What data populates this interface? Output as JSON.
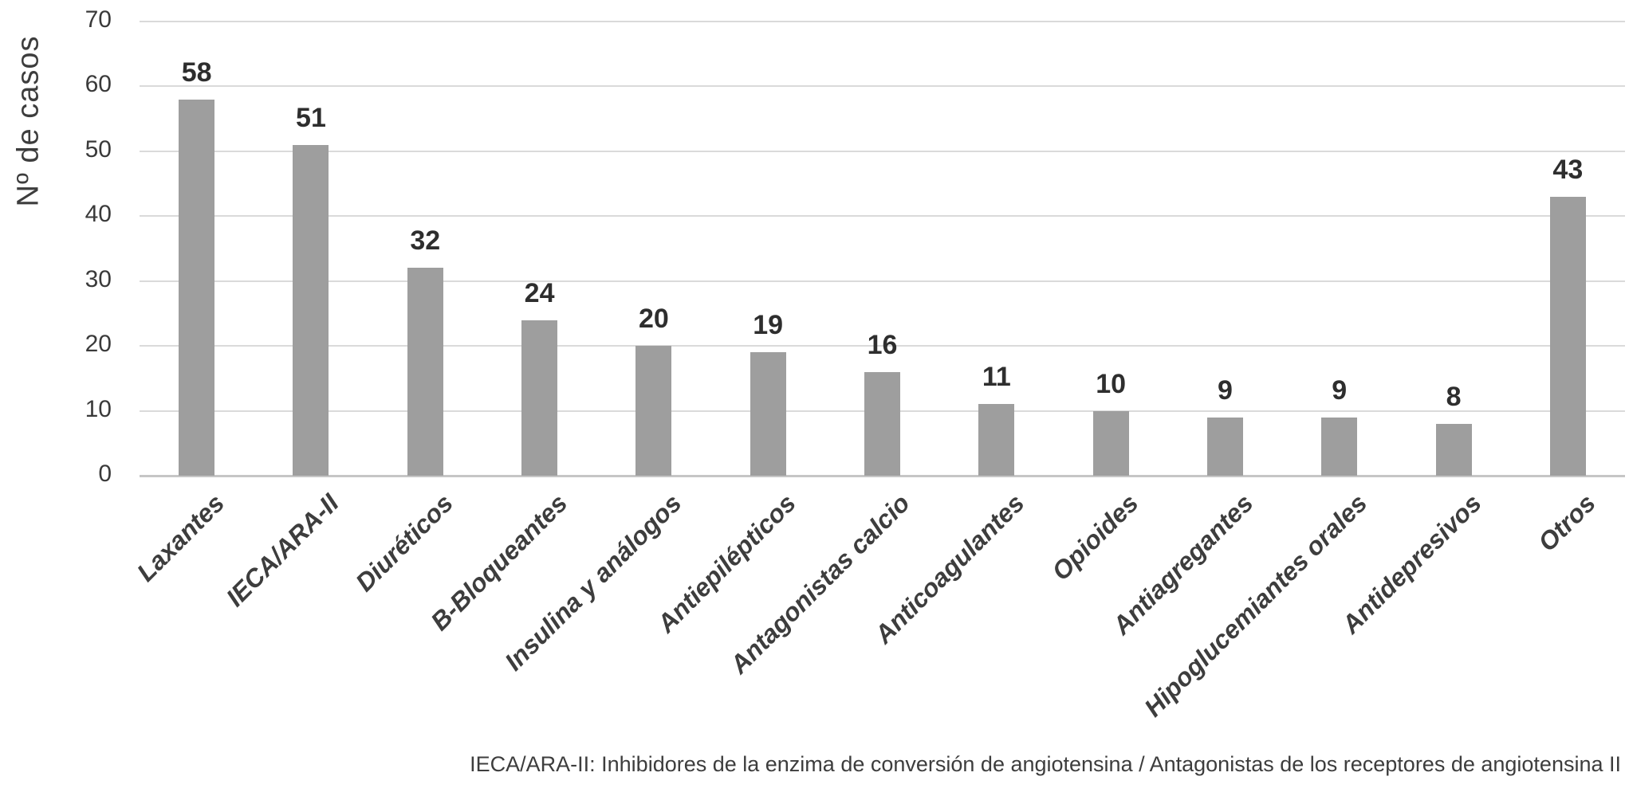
{
  "chart_data": {
    "type": "bar",
    "title": "",
    "xlabel": "",
    "ylabel": "Nº de casos",
    "ylim": [
      0,
      70
    ],
    "yticks": [
      0,
      10,
      20,
      30,
      40,
      50,
      60,
      70
    ],
    "grid": "horizontal",
    "legend": "none",
    "categories": [
      "Laxantes",
      "IECA/ARA-II",
      "Diuréticos",
      "B-Bloqueantes",
      "Insulina y análogos",
      "Antiepilépticos",
      "Antagonistas calcio",
      "Anticoagulantes",
      "Opioides",
      "Antiagregantes",
      "Hipoglucemiantes orales",
      "Antidepresivos",
      "Otros"
    ],
    "values": [
      58,
      51,
      32,
      24,
      20,
      19,
      16,
      11,
      10,
      9,
      9,
      8,
      43
    ],
    "data_labels_shown": true,
    "colors": {
      "bar": "#9e9e9e",
      "gridline": "#dadada",
      "axis_line": "#c6c6c6",
      "tick_label": "#3a3a3a",
      "value_label": "#2e2e2e",
      "category_label": "#3d3d3d"
    }
  },
  "footnote": "IECA/ARA-II: Inhibidores de la enzima de conversión de angiotensina / Antagonistas de los receptores de angiotensina II"
}
